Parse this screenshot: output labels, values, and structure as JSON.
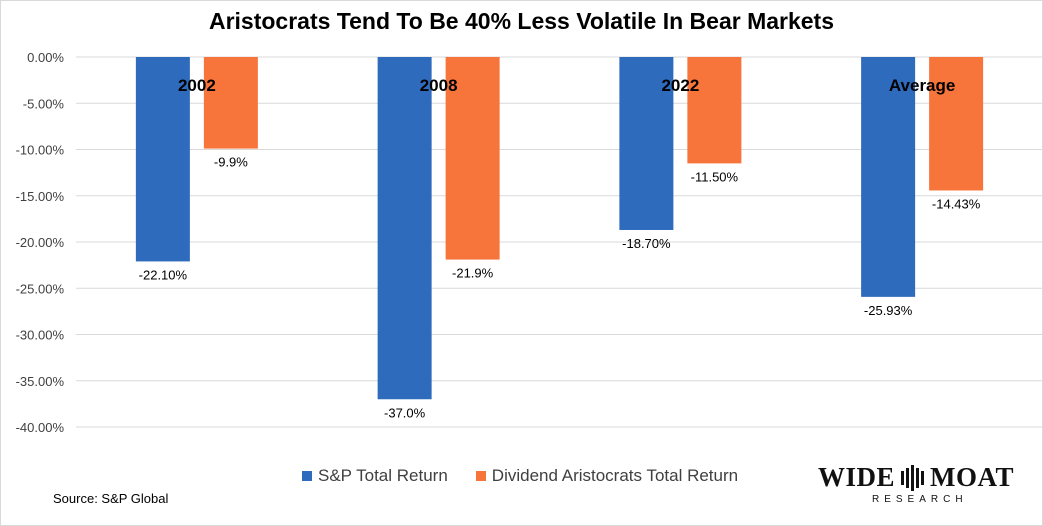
{
  "source": "Source: S&P Global",
  "logo": {
    "line1_left": "WIDE",
    "line1_right": "MOAT",
    "line2": "RESEARCH"
  },
  "colors": {
    "sp": "#2e6bbd",
    "aristocrats": "#f7743a",
    "grid": "#d9d9d9",
    "axis_text": "#404040"
  },
  "chart_data": {
    "type": "bar",
    "title": "Aristocrats Tend To Be 40% Less Volatile In Bear Markets",
    "categories": [
      "2002",
      "2008",
      "2022",
      "Average"
    ],
    "series": [
      {
        "name": "S&P Total Return",
        "values": [
          -22.1,
          -37.0,
          -18.7,
          -25.93
        ],
        "labels": [
          "-22.10%",
          "-37.0%",
          "-18.70%",
          "-25.93%"
        ]
      },
      {
        "name": "Dividend Aristocrats Total Return",
        "values": [
          -9.9,
          -21.9,
          -11.5,
          -14.43
        ],
        "labels": [
          "-9.9%",
          "-21.9%",
          "-11.50%",
          "-14.43%"
        ]
      }
    ],
    "ylim": [
      -40,
      0
    ],
    "y_ticks": [
      "0.00%",
      "-5.00%",
      "-10.00%",
      "-15.00%",
      "-20.00%",
      "-25.00%",
      "-30.00%",
      "-35.00%",
      "-40.00%"
    ],
    "y_tick_values": [
      0,
      -5,
      -10,
      -15,
      -20,
      -25,
      -30,
      -35,
      -40
    ],
    "grid": true,
    "legend": "bottom"
  }
}
